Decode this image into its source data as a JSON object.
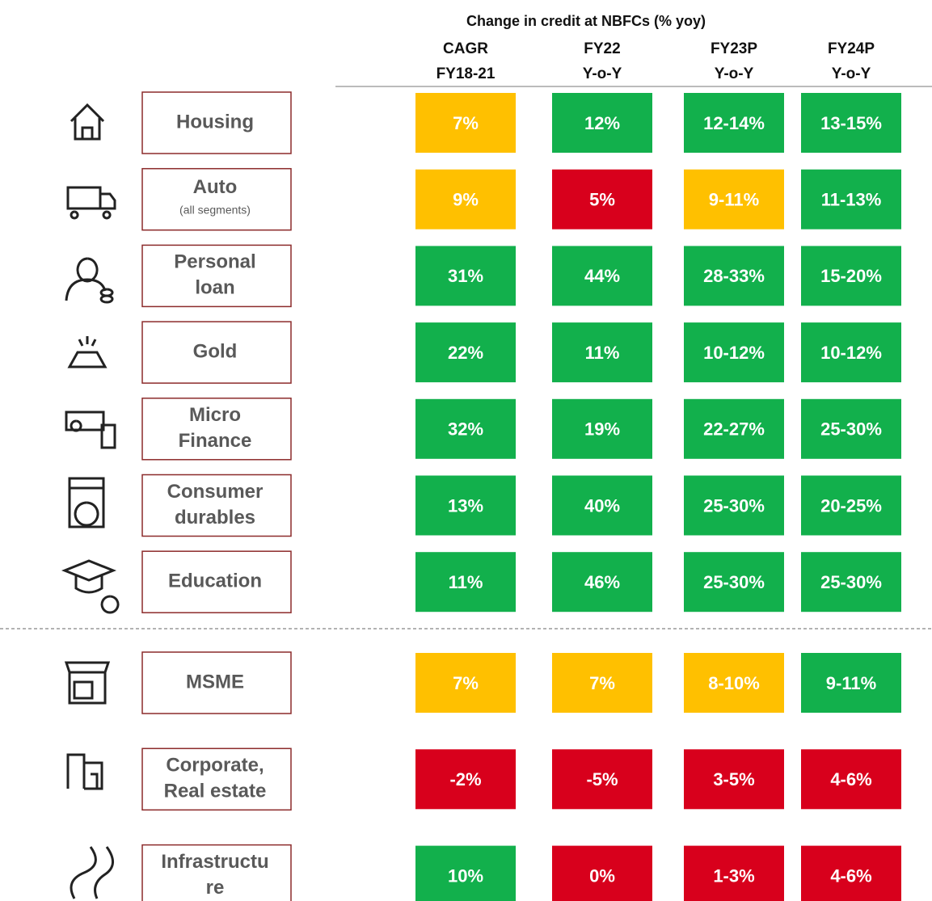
{
  "header": {
    "title": "Change in credit at NBFCs (% yoy)",
    "columns": [
      [
        "CAGR",
        "FY18-21"
      ],
      [
        "FY22",
        "Y-o-Y"
      ],
      [
        "FY23P",
        "Y-o-Y"
      ],
      [
        "FY24P",
        "Y-o-Y"
      ]
    ]
  },
  "sections": [
    {
      "rows": [
        {
          "label": [
            "Housing"
          ],
          "cells": [
            {
              "text": "7%",
              "color": "#ffc000"
            },
            {
              "text": "12%",
              "color": "#12b04c"
            },
            {
              "text": "12-14%",
              "color": "#12b04c"
            },
            {
              "text": "13-15%",
              "color": "#12b04c"
            }
          ]
        },
        {
          "label": [
            "Auto"
          ],
          "sublabel": "(all segments)",
          "cells": [
            {
              "text": "9%",
              "color": "#ffc000"
            },
            {
              "text": "5%",
              "color": "#d8001c"
            },
            {
              "text": "9-11%",
              "color": "#ffc000"
            },
            {
              "text": "11-13%",
              "color": "#12b04c"
            }
          ]
        },
        {
          "label": [
            "Personal",
            "loan"
          ],
          "cells": [
            {
              "text": "31%",
              "color": "#12b04c"
            },
            {
              "text": "44%",
              "color": "#12b04c"
            },
            {
              "text": "28-33%",
              "color": "#12b04c"
            },
            {
              "text": "15-20%",
              "color": "#12b04c"
            }
          ]
        },
        {
          "label": [
            "Gold"
          ],
          "cells": [
            {
              "text": "22%",
              "color": "#12b04c"
            },
            {
              "text": "11%",
              "color": "#12b04c"
            },
            {
              "text": "10-12%",
              "color": "#12b04c"
            },
            {
              "text": "10-12%",
              "color": "#12b04c"
            }
          ]
        },
        {
          "label": [
            "Micro",
            "Finance"
          ],
          "cells": [
            {
              "text": "32%",
              "color": "#12b04c"
            },
            {
              "text": "19%",
              "color": "#12b04c"
            },
            {
              "text": "22-27%",
              "color": "#12b04c"
            },
            {
              "text": "25-30%",
              "color": "#12b04c"
            }
          ]
        },
        {
          "label": [
            "Consumer",
            "durables"
          ],
          "cells": [
            {
              "text": "13%",
              "color": "#12b04c"
            },
            {
              "text": "40%",
              "color": "#12b04c"
            },
            {
              "text": "25-30%",
              "color": "#12b04c"
            },
            {
              "text": "20-25%",
              "color": "#12b04c"
            }
          ]
        },
        {
          "label": [
            "Education"
          ],
          "cells": [
            {
              "text": "11%",
              "color": "#12b04c"
            },
            {
              "text": "46%",
              "color": "#12b04c"
            },
            {
              "text": "25-30%",
              "color": "#12b04c"
            },
            {
              "text": "25-30%",
              "color": "#12b04c"
            }
          ]
        }
      ]
    },
    {
      "rows": [
        {
          "label": [
            "MSME"
          ],
          "cells": [
            {
              "text": "7%",
              "color": "#ffc000"
            },
            {
              "text": "7%",
              "color": "#ffc000"
            },
            {
              "text": "8-10%",
              "color": "#ffc000"
            },
            {
              "text": "9-11%",
              "color": "#12b04c"
            }
          ]
        },
        {
          "label": [
            "Corporate,",
            "Real estate"
          ],
          "cells": [
            {
              "text": "-2%",
              "color": "#d8001c"
            },
            {
              "text": "-5%",
              "color": "#d8001c"
            },
            {
              "text": "3-5%",
              "color": "#d8001c"
            },
            {
              "text": "4-6%",
              "color": "#d8001c"
            }
          ]
        },
        {
          "label": [
            "Infrastructu",
            "re"
          ],
          "cells": [
            {
              "text": "10%",
              "color": "#12b04c"
            },
            {
              "text": "0%",
              "color": "#d8001c"
            },
            {
              "text": "1-3%",
              "color": "#d8001c"
            },
            {
              "text": "4-6%",
              "color": "#d8001c"
            }
          ]
        }
      ]
    }
  ]
}
